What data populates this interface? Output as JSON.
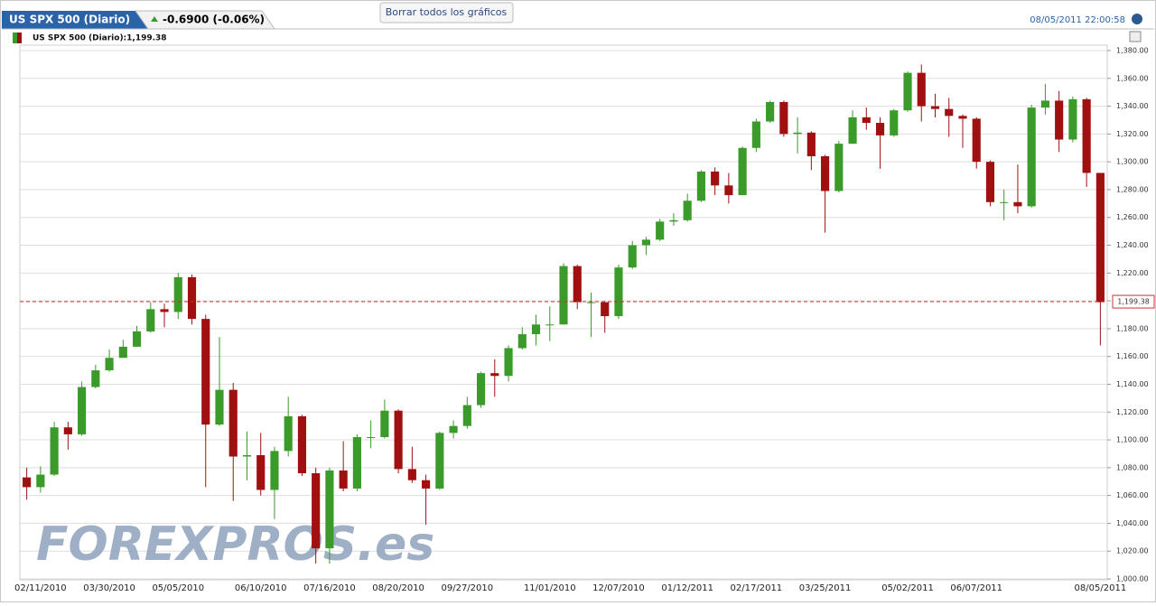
{
  "header": {
    "tab": "US SPX 500 (Diario)",
    "change": "-0.6900 (-0.06%)",
    "button": "Borrar todos los gráficos",
    "timestamp": "08/05/2011 22:00:58"
  },
  "watermark": "FOREXPROS.es",
  "chart_data": {
    "type": "candlestick",
    "legend_label": "US SPX 500 (Diario):1,199.38",
    "up_color": "#3a9a2a",
    "down_color": "#a01010",
    "categories": [
      null,
      "02/11/2010",
      null,
      null,
      null,
      null,
      "03/30/2010",
      null,
      null,
      null,
      null,
      "05/05/2010",
      null,
      null,
      null,
      null,
      null,
      "06/10/2010",
      null,
      null,
      null,
      null,
      "07/16/2010",
      null,
      null,
      null,
      null,
      "08/20/2010",
      null,
      null,
      null,
      null,
      "09/27/2010",
      null,
      null,
      null,
      null,
      null,
      "11/01/2010",
      null,
      null,
      null,
      null,
      "12/07/2010",
      null,
      null,
      null,
      null,
      "01/12/2011",
      null,
      null,
      null,
      null,
      "02/17/2011",
      null,
      null,
      null,
      null,
      "03/25/2011",
      null,
      null,
      null,
      null,
      null,
      "05/02/2011",
      null,
      null,
      null,
      null,
      "06/07/2011",
      null,
      null,
      null,
      null,
      null,
      null,
      null,
      null,
      "08/05/2011"
    ],
    "open": [
      1073,
      1066,
      1075,
      1109,
      1104,
      1138,
      1150,
      1159,
      1167,
      1178,
      1194,
      1192,
      1217,
      1187,
      1111,
      1136,
      1088,
      1089,
      1064,
      1092,
      1117,
      1076,
      1022,
      1078,
      1065,
      1102,
      1102,
      1121,
      1079,
      1071,
      1065,
      1105,
      1110,
      1125,
      1148,
      1146,
      1166,
      1176,
      1183,
      1183,
      1225,
      1199,
      1199,
      1189,
      1224,
      1240,
      1244,
      1257,
      1258,
      1272,
      1293,
      1283,
      1276,
      1310,
      1329,
      1343,
      1320,
      1321,
      1304,
      1279,
      1313,
      1332,
      1328,
      1319,
      1337,
      1364,
      1340,
      1338,
      1333,
      1331,
      1300,
      1271,
      1271,
      1268,
      1339,
      1344,
      1316,
      1345,
      1292
    ],
    "high": [
      1080,
      1081,
      1113,
      1113,
      1142,
      1154,
      1165,
      1172,
      1182,
      1199,
      1198,
      1220,
      1219,
      1190,
      1174,
      1141,
      1106,
      1105,
      1095,
      1131,
      1118,
      1080,
      1080,
      1099,
      1104,
      1114,
      1129,
      1122,
      1095,
      1075,
      1106,
      1114,
      1131,
      1149,
      1158,
      1168,
      1181,
      1190,
      1196,
      1227,
      1226,
      1206,
      1200,
      1226,
      1243,
      1246,
      1259,
      1263,
      1277,
      1294,
      1296,
      1292,
      1311,
      1331,
      1344,
      1344,
      1332,
      1322,
      1305,
      1315,
      1337,
      1339,
      1332,
      1338,
      1365,
      1370,
      1349,
      1346,
      1334,
      1332,
      1301,
      1280,
      1298,
      1341,
      1356,
      1351,
      1347,
      1346,
      1292
    ],
    "low": [
      1057,
      1062,
      1074,
      1093,
      1103,
      1137,
      1149,
      1159,
      1167,
      1177,
      1181,
      1187,
      1183,
      1066,
      1110,
      1056,
      1071,
      1060,
      1043,
      1088,
      1074,
      1011,
      1011,
      1063,
      1063,
      1094,
      1101,
      1076,
      1069,
      1039,
      1064,
      1101,
      1108,
      1123,
      1131,
      1142,
      1165,
      1168,
      1171,
      1183,
      1194,
      1174,
      1177,
      1187,
      1223,
      1233,
      1243,
      1254,
      1257,
      1271,
      1276,
      1270,
      1276,
      1307,
      1328,
      1318,
      1306,
      1294,
      1249,
      1278,
      1313,
      1323,
      1295,
      1318,
      1336,
      1329,
      1332,
      1318,
      1310,
      1295,
      1268,
      1258,
      1263,
      1267,
      1334,
      1307,
      1314,
      1282,
      1168
    ],
    "close": [
      1066,
      1075,
      1109,
      1104,
      1138,
      1150,
      1159,
      1167,
      1178,
      1194,
      1192,
      1217,
      1187,
      1111,
      1136,
      1088,
      1089,
      1064,
      1092,
      1117,
      1076,
      1022,
      1078,
      1065,
      1102,
      1102,
      1121,
      1079,
      1071,
      1065,
      1105,
      1110,
      1125,
      1148,
      1146,
      1166,
      1176,
      1183,
      1183,
      1225,
      1199,
      1199,
      1189,
      1224,
      1240,
      1244,
      1257,
      1258,
      1272,
      1293,
      1283,
      1276,
      1310,
      1329,
      1343,
      1320,
      1321,
      1304,
      1279,
      1313,
      1332,
      1328,
      1319,
      1337,
      1364,
      1340,
      1338,
      1333,
      1331,
      1300,
      1271,
      1271,
      1268,
      1339,
      1344,
      1316,
      1345,
      1292,
      1199
    ],
    "last_price": {
      "value": 1199.38,
      "label": "1,199.38"
    },
    "last_color": "#d03030",
    "ylim": [
      1000,
      1380
    ],
    "yticks": [
      {
        "value": 1000,
        "label": "1,000.00"
      },
      {
        "value": 1020,
        "label": "1,020.00"
      },
      {
        "value": 1040,
        "label": "1,040.00"
      },
      {
        "value": 1060,
        "label": "1,060.00"
      },
      {
        "value": 1080,
        "label": "1,080.00"
      },
      {
        "value": 1100,
        "label": "1,100.00"
      },
      {
        "value": 1120,
        "label": "1,120.00"
      },
      {
        "value": 1140,
        "label": "1,140.00"
      },
      {
        "value": 1160,
        "label": "1,160.00"
      },
      {
        "value": 1180,
        "label": "1,180.00"
      },
      {
        "value": 1200,
        "label": "1,200.00"
      },
      {
        "value": 1220,
        "label": "1,220.00"
      },
      {
        "value": 1240,
        "label": "1,240.00"
      },
      {
        "value": 1260,
        "label": "1,260.00"
      },
      {
        "value": 1280,
        "label": "1,280.00"
      },
      {
        "value": 1300,
        "label": "1,300.00"
      },
      {
        "value": 1320,
        "label": "1,320.00"
      },
      {
        "value": 1340,
        "label": "1,340.00"
      },
      {
        "value": 1360,
        "label": "1,360.00"
      },
      {
        "value": 1380,
        "label": "1,380.00"
      }
    ],
    "grid": true
  }
}
